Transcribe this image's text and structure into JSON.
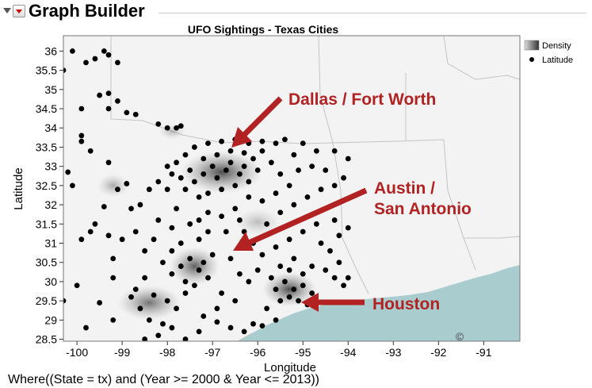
{
  "header": {
    "title": "Graph Builder"
  },
  "footer": {
    "filter": "Where((State = tx) and (Year >= 2000 & Year <= 2013))"
  },
  "chart_data": {
    "type": "scatter",
    "title": "UFO Sightings - Texas Cities",
    "xlabel": "Longitude",
    "ylabel": "Latitude",
    "xlim": [
      -100.3,
      -90.2
    ],
    "ylim": [
      28.45,
      36.4
    ],
    "xticks": [
      "-100",
      "-99",
      "-98",
      "-97",
      "-96",
      "-95",
      "-94",
      "-93",
      "-92",
      "-91"
    ],
    "yticks": [
      "28.5",
      "29",
      "29.5",
      "30",
      "30.5",
      "31",
      "31.5",
      "32",
      "32.5",
      "33",
      "33.5",
      "34",
      "34.5",
      "35",
      "35.5",
      "36"
    ],
    "legend": {
      "placement": "top-right",
      "entries": [
        "Density",
        "Latitude"
      ]
    },
    "copyright": "©",
    "colors": {
      "annotation": "#b22222",
      "points": "#000000",
      "density": "#444444",
      "water": "#a9cccf"
    },
    "density": [
      {
        "x": -96.8,
        "y": 32.85,
        "rx": 0.9,
        "ry": 0.55,
        "level": 0.9
      },
      {
        "x": -97.4,
        "y": 30.4,
        "rx": 0.55,
        "ry": 0.5,
        "level": 0.8
      },
      {
        "x": -98.4,
        "y": 29.45,
        "rx": 0.7,
        "ry": 0.45,
        "level": 0.7
      },
      {
        "x": -95.3,
        "y": 29.8,
        "rx": 0.6,
        "ry": 0.45,
        "level": 0.9
      },
      {
        "x": -99.2,
        "y": 32.5,
        "rx": 0.35,
        "ry": 0.3,
        "level": 0.4
      },
      {
        "x": -96.0,
        "y": 31.55,
        "rx": 0.5,
        "ry": 0.35,
        "level": 0.3
      },
      {
        "x": -97.9,
        "y": 33.9,
        "rx": 0.3,
        "ry": 0.2,
        "level": 0.3
      }
    ],
    "points": [
      [
        -100.1,
        36.0
      ],
      [
        -99.8,
        35.7
      ],
      [
        -99.6,
        35.8
      ],
      [
        -99.4,
        36.0
      ],
      [
        -99.3,
        35.9
      ],
      [
        -99.1,
        35.7
      ],
      [
        -100.3,
        35.5
      ],
      [
        -99.5,
        34.85
      ],
      [
        -99.3,
        34.9
      ],
      [
        -99.1,
        34.7
      ],
      [
        -99.9,
        34.5
      ],
      [
        -99.3,
        34.5
      ],
      [
        -98.9,
        34.4
      ],
      [
        -98.7,
        34.35
      ],
      [
        -98.2,
        34.1
      ],
      [
        -98.0,
        34.0
      ],
      [
        -97.8,
        34.0
      ],
      [
        -97.7,
        34.05
      ],
      [
        -99.9,
        33.8
      ],
      [
        -99.9,
        33.65
      ],
      [
        -99.7,
        33.4
      ],
      [
        -100.2,
        32.85
      ],
      [
        -100.1,
        32.5
      ],
      [
        -99.3,
        33.1
      ],
      [
        -99.1,
        32.4
      ],
      [
        -98.9,
        32.55
      ],
      [
        -99.4,
        31.95
      ],
      [
        -99.6,
        31.5
      ],
      [
        -99.7,
        31.3
      ],
      [
        -99.9,
        31.1
      ],
      [
        -99.3,
        31.2
      ],
      [
        -99.0,
        31.1
      ],
      [
        -98.8,
        31.9
      ],
      [
        -98.6,
        32.0
      ],
      [
        -98.4,
        32.4
      ],
      [
        -98.2,
        32.6
      ],
      [
        -98.0,
        32.4
      ],
      [
        -98.2,
        31.6
      ],
      [
        -97.9,
        31.4
      ],
      [
        -97.8,
        31.9
      ],
      [
        -99.2,
        30.6
      ],
      [
        -99.2,
        30.1
      ],
      [
        -100.0,
        29.9
      ],
      [
        -100.3,
        29.5
      ],
      [
        -99.5,
        29.45
      ],
      [
        -99.2,
        29.0
      ],
      [
        -99.8,
        28.8
      ],
      [
        -98.8,
        29.6
      ],
      [
        -98.6,
        29.3
      ],
      [
        -98.4,
        29.0
      ],
      [
        -98.1,
        28.9
      ],
      [
        -97.9,
        28.8
      ],
      [
        -98.5,
        28.5
      ],
      [
        -98.2,
        28.6
      ],
      [
        -97.6,
        28.5
      ],
      [
        -97.3,
        28.7
      ],
      [
        -97.2,
        29.1
      ],
      [
        -96.9,
        28.95
      ],
      [
        -96.6,
        28.8
      ],
      [
        -96.3,
        28.7
      ],
      [
        -96.1,
        28.9
      ],
      [
        -95.9,
        28.85
      ],
      [
        -95.6,
        29.0
      ],
      [
        -98.7,
        29.8
      ],
      [
        -98.5,
        30.1
      ],
      [
        -98.3,
        29.65
      ],
      [
        -98.0,
        29.5
      ],
      [
        -97.8,
        29.3
      ],
      [
        -97.6,
        29.7
      ],
      [
        -97.9,
        30.2
      ],
      [
        -97.7,
        30.4
      ],
      [
        -97.5,
        30.6
      ],
      [
        -97.3,
        30.3
      ],
      [
        -97.2,
        30.5
      ],
      [
        -97.6,
        30.0
      ],
      [
        -97.4,
        29.9
      ],
      [
        -97.1,
        30.1
      ],
      [
        -97.0,
        30.7
      ],
      [
        -97.3,
        31.1
      ],
      [
        -97.1,
        31.3
      ],
      [
        -97.5,
        31.5
      ],
      [
        -97.7,
        31.0
      ],
      [
        -97.9,
        30.8
      ],
      [
        -98.1,
        30.5
      ],
      [
        -96.6,
        30.6
      ],
      [
        -96.4,
        30.2
      ],
      [
        -96.2,
        30.0
      ],
      [
        -96.0,
        30.3
      ],
      [
        -96.8,
        29.7
      ],
      [
        -96.5,
        29.5
      ],
      [
        -96.9,
        29.3
      ],
      [
        -95.8,
        29.3
      ],
      [
        -95.5,
        29.5
      ],
      [
        -95.3,
        29.6
      ],
      [
        -95.2,
        29.8
      ],
      [
        -95.0,
        29.9
      ],
      [
        -95.4,
        30.0
      ],
      [
        -95.6,
        29.8
      ],
      [
        -95.1,
        29.5
      ],
      [
        -94.9,
        29.4
      ],
      [
        -94.8,
        29.7
      ],
      [
        -95.0,
        30.2
      ],
      [
        -95.3,
        30.3
      ],
      [
        -95.7,
        30.1
      ],
      [
        -95.5,
        30.4
      ],
      [
        -95.2,
        30.6
      ],
      [
        -94.8,
        30.4
      ],
      [
        -94.5,
        30.3
      ],
      [
        -94.3,
        30.1
      ],
      [
        -94.1,
        29.9
      ],
      [
        -94.0,
        30.1
      ],
      [
        -94.2,
        30.5
      ],
      [
        -94.4,
        30.8
      ],
      [
        -94.6,
        31.0
      ],
      [
        -94.2,
        31.2
      ],
      [
        -94.0,
        31.4
      ],
      [
        -94.3,
        31.6
      ],
      [
        -94.7,
        31.5
      ],
      [
        -95.0,
        31.3
      ],
      [
        -95.3,
        31.1
      ],
      [
        -95.6,
        30.9
      ],
      [
        -95.9,
        30.7
      ],
      [
        -96.1,
        31.0
      ],
      [
        -96.3,
        31.3
      ],
      [
        -95.8,
        31.5
      ],
      [
        -95.5,
        31.8
      ],
      [
        -95.2,
        32.0
      ],
      [
        -94.9,
        32.2
      ],
      [
        -94.6,
        32.4
      ],
      [
        -94.3,
        32.5
      ],
      [
        -94.1,
        32.7
      ],
      [
        -94.0,
        33.2
      ],
      [
        -94.3,
        33.4
      ],
      [
        -94.7,
        33.4
      ],
      [
        -95.0,
        33.6
      ],
      [
        -95.4,
        33.7
      ],
      [
        -95.6,
        33.6
      ],
      [
        -95.9,
        33.65
      ],
      [
        -96.2,
        33.6
      ],
      [
        -96.5,
        33.7
      ],
      [
        -96.8,
        33.65
      ],
      [
        -97.1,
        33.6
      ],
      [
        -97.4,
        33.5
      ],
      [
        -97.6,
        33.3
      ],
      [
        -97.8,
        33.1
      ],
      [
        -98.0,
        33.0
      ],
      [
        -97.9,
        32.8
      ],
      [
        -97.7,
        32.7
      ],
      [
        -97.5,
        32.9
      ],
      [
        -97.4,
        32.6
      ],
      [
        -97.2,
        32.8
      ],
      [
        -97.0,
        33.0
      ],
      [
        -96.9,
        32.7
      ],
      [
        -96.7,
        32.9
      ],
      [
        -96.6,
        33.1
      ],
      [
        -96.4,
        32.8
      ],
      [
        -96.3,
        33.0
      ],
      [
        -96.1,
        33.2
      ],
      [
        -96.0,
        32.9
      ],
      [
        -96.2,
        32.6
      ],
      [
        -96.5,
        32.5
      ],
      [
        -96.8,
        32.4
      ],
      [
        -97.1,
        32.3
      ],
      [
        -97.3,
        32.2
      ],
      [
        -97.6,
        32.4
      ],
      [
        -96.9,
        33.3
      ],
      [
        -97.2,
        33.2
      ],
      [
        -96.6,
        33.4
      ],
      [
        -96.3,
        33.35
      ],
      [
        -95.9,
        33.4
      ],
      [
        -95.7,
        33.1
      ],
      [
        -95.5,
        32.8
      ],
      [
        -95.3,
        32.5
      ],
      [
        -95.6,
        32.3
      ],
      [
        -95.9,
        32.1
      ],
      [
        -96.2,
        32.2
      ],
      [
        -96.5,
        31.9
      ],
      [
        -96.8,
        31.7
      ],
      [
        -97.1,
        31.8
      ],
      [
        -97.3,
        31.6
      ],
      [
        -96.7,
        31.3
      ],
      [
        -96.4,
        31.6
      ],
      [
        -95.1,
        32.9
      ],
      [
        -94.8,
        33.0
      ],
      [
        -94.5,
        32.9
      ],
      [
        -95.2,
        33.3
      ],
      [
        -98.5,
        30.8
      ],
      [
        -98.7,
        31.3
      ],
      [
        -98.3,
        31.1
      ]
    ]
  }
}
